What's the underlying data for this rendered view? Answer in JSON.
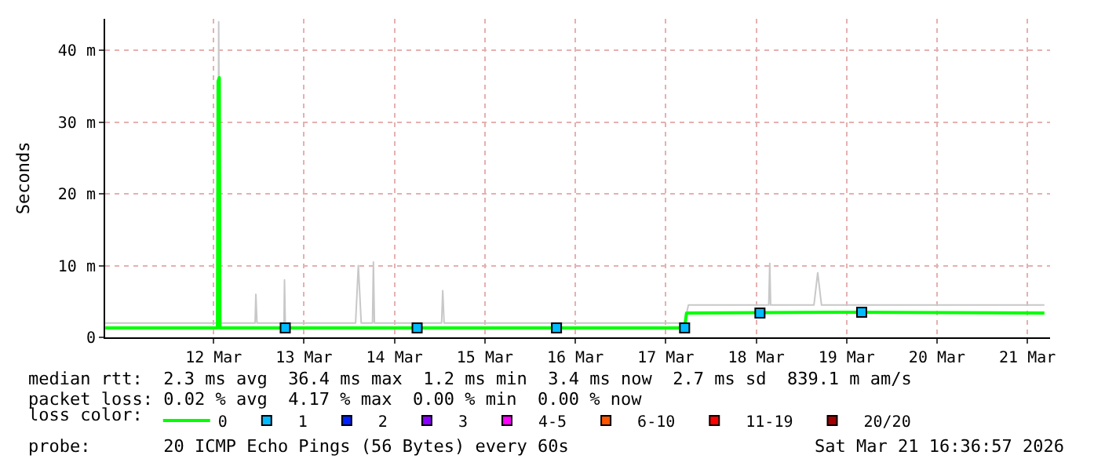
{
  "chart_data": {
    "type": "line",
    "ylabel": "Seconds",
    "xlim": [
      "2026-03-11T07:12",
      "2026-03-21T18:00"
    ],
    "xticks": [
      {
        "value": "2026-03-12T12:00",
        "label": "12 Mar"
      },
      {
        "value": "2026-03-13T12:00",
        "label": "13 Mar"
      },
      {
        "value": "2026-03-14T12:00",
        "label": "14 Mar"
      },
      {
        "value": "2026-03-15T12:00",
        "label": "15 Mar"
      },
      {
        "value": "2026-03-16T12:00",
        "label": "16 Mar"
      },
      {
        "value": "2026-03-17T12:00",
        "label": "17 Mar"
      },
      {
        "value": "2026-03-18T12:00",
        "label": "18 Mar"
      },
      {
        "value": "2026-03-19T12:00",
        "label": "19 Mar"
      },
      {
        "value": "2026-03-20T12:00",
        "label": "20 Mar"
      },
      {
        "value": "2026-03-21T12:00",
        "label": "21 Mar"
      }
    ],
    "ylim": [
      0,
      44.4
    ],
    "yticks": [
      0,
      {
        "value": 10,
        "label": "10 m"
      },
      {
        "value": 20,
        "label": "20 m"
      },
      {
        "value": 30,
        "label": "30 m"
      },
      {
        "value": 40,
        "label": "40 m"
      }
    ],
    "grid": true,
    "legend": "bottom",
    "legend_title": "loss color:",
    "series": [
      {
        "color": "#c8c8c8",
        "x": [
          "2026-03-11T07:15",
          "2026-03-11T20:00",
          "2026-03-12T08:00",
          "2026-03-12T13:10",
          "2026-03-12T13:20",
          "2026-03-12T13:40",
          "2026-03-12T23:00",
          "2026-03-12T23:12",
          "2026-03-12T23:30",
          "2026-03-13T06:40",
          "2026-03-13T06:48",
          "2026-03-13T07:00",
          "2026-03-14T01:40",
          "2026-03-14T02:24",
          "2026-03-14T03:10",
          "2026-03-14T06:10",
          "2026-03-14T06:24",
          "2026-03-14T06:40",
          "2026-03-15T00:30",
          "2026-03-15T00:48",
          "2026-03-15T01:10",
          "2026-03-17T17:00",
          "2026-03-17T18:00",
          "2026-03-18T15:20",
          "2026-03-18T15:36",
          "2026-03-18T15:50",
          "2026-03-19T03:20",
          "2026-03-19T04:20",
          "2026-03-19T05:20",
          "2026-03-21T16:30"
        ],
        "values": [
          2,
          2,
          2,
          2,
          44,
          2,
          2,
          6,
          2,
          2,
          8,
          2,
          2,
          10,
          2,
          2,
          10.5,
          2,
          2,
          6.5,
          2,
          2,
          4.5,
          4.5,
          10.3,
          4.5,
          4.5,
          9,
          4.5,
          4.5
        ]
      },
      {
        "name": "0",
        "color": "#00ff00",
        "x": [
          "2026-03-11T07:15",
          "2026-03-12T13:00",
          "2026-03-12T13:10",
          "2026-03-12T13:30",
          "2026-03-12T13:40",
          "2026-03-14T12:00",
          "2026-03-16T12:00",
          "2026-03-17T17:00",
          "2026-03-17T17:30",
          "2026-03-19T12:00",
          "2026-03-21T16:30"
        ],
        "values": [
          1.3,
          1.3,
          35.7,
          36.2,
          1.3,
          1.3,
          1.3,
          1.3,
          3.4,
          3.5,
          3.4
        ]
      },
      {
        "name": "1",
        "color": "#00bbff",
        "type": "scatter",
        "x": [
          "2026-03-13T07:00",
          "2026-03-14T18:00",
          "2026-03-16T07:00",
          "2026-03-17T17:00",
          "2026-03-18T13:00",
          "2026-03-19T16:00"
        ],
        "values": [
          1.3,
          1.3,
          1.3,
          1.3,
          3.4,
          3.5
        ]
      },
      {
        "name": "2",
        "color": "#0022ff",
        "type": "scatter"
      },
      {
        "name": "3",
        "color": "#8a00ff",
        "type": "scatter"
      },
      {
        "name": "4-5",
        "color": "#ff00ff",
        "type": "scatter"
      },
      {
        "name": "6-10",
        "color": "#ff5500",
        "type": "scatter"
      },
      {
        "name": "11-19",
        "color": "#ff0000",
        "type": "scatter"
      },
      {
        "name": "20/20",
        "color": "#a10000",
        "type": "scatter"
      }
    ],
    "annotations": [
      "median rtt:  2.3 ms avg  36.4 ms max  1.2 ms min  3.4 ms now  2.7 ms sd  839.1 m am/s",
      "packet loss: 0.02 % avg  4.17 % max  0.00 % min  0.00 % now",
      "probe:       20 ICMP Echo Pings (56 Bytes) every 60s",
      "Sat Mar 21 16:36:57 2026"
    ]
  }
}
